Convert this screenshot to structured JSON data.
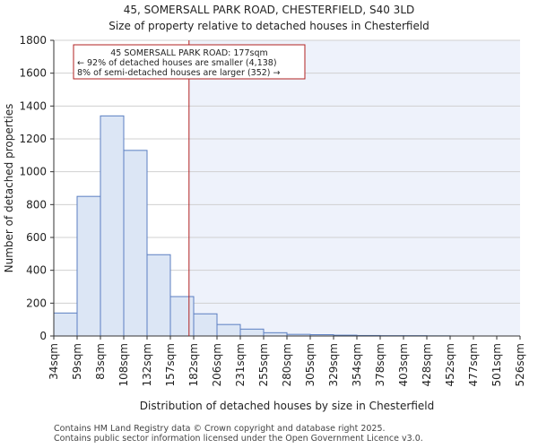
{
  "chart_data": {
    "type": "histogram",
    "title": "45, SOMERSALL PARK ROAD, CHESTERFIELD, S40 3LD",
    "subtitle": "Size of property relative to detached houses in Chesterfield",
    "xlabel": "Distribution of detached houses by size in Chesterfield",
    "ylabel": "Number of detached properties",
    "ylim": [
      0,
      1800
    ],
    "yticks": [
      0,
      200,
      400,
      600,
      800,
      1000,
      1200,
      1400,
      1600,
      1800
    ],
    "categories": [
      "34sqm",
      "59sqm",
      "83sqm",
      "108sqm",
      "132sqm",
      "157sqm",
      "182sqm",
      "206sqm",
      "231sqm",
      "255sqm",
      "280sqm",
      "305sqm",
      "329sqm",
      "354sqm",
      "378sqm",
      "403sqm",
      "428sqm",
      "452sqm",
      "477sqm",
      "501sqm",
      "526sqm"
    ],
    "values": [
      140,
      850,
      1340,
      1130,
      495,
      240,
      135,
      70,
      42,
      20,
      10,
      8,
      5,
      3,
      2,
      2,
      1,
      0,
      0,
      0
    ],
    "marker_bin": 5.8,
    "annotation": [
      "45 SOMERSALL PARK ROAD: 177sqm",
      "← 92% of detached houses are smaller (4,138)",
      "8% of semi-detached houses are larger (352) →"
    ],
    "colors": {
      "bar_fill": "#dce6f5",
      "bar_stroke": "#5b7fc2",
      "marker": "#b22222",
      "shade": "#eef2fb"
    }
  },
  "footer": {
    "line1": "Contains HM Land Registry data © Crown copyright and database right 2025.",
    "line2": "Contains public sector information licensed under the Open Government Licence v3.0."
  }
}
